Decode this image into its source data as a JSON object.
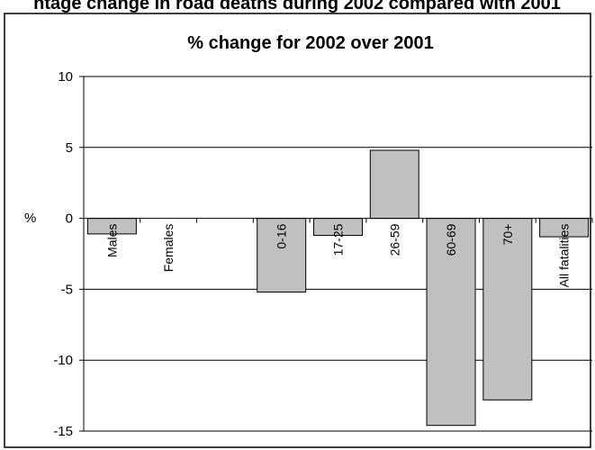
{
  "page": {
    "top_caption": "ntage change in road deaths during 2002 compared with 2001"
  },
  "chart_data": {
    "type": "bar",
    "title": "% change for 2002 over 2001",
    "ylabel": "%",
    "xlabel": "",
    "ylim": [
      -15,
      10
    ],
    "yticks": [
      10,
      5,
      0,
      -5,
      -10,
      -15
    ],
    "grid": true,
    "categories": [
      "Males",
      "Females",
      "",
      "0-16",
      "17-25",
      "26-59",
      "60-69",
      "70+",
      "All fatalities"
    ],
    "values": [
      -1.1,
      0,
      null,
      -5.2,
      -1.2,
      4.8,
      -14.6,
      -12.8,
      -1.3
    ],
    "bar_color": "#c0c0c0"
  }
}
